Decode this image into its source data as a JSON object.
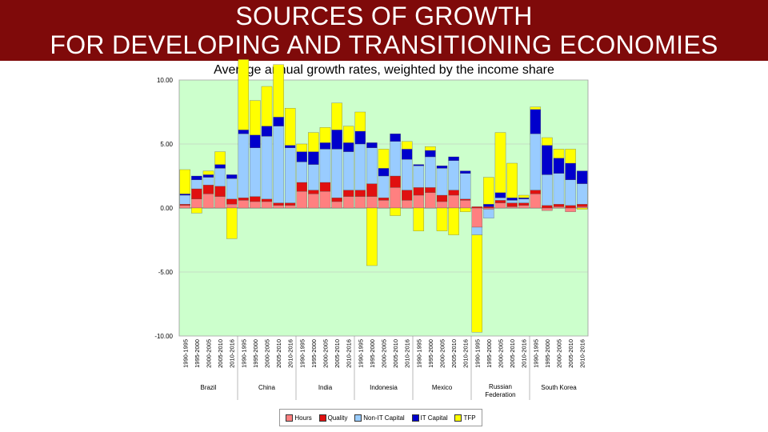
{
  "header": {
    "title_line1": "SOURCES OF GROWTH",
    "title_line2": "FOR DEVELOPING AND TRANSITIONING ECONOMIES",
    "subtitle": "Average annual growth rates, weighted by the income share"
  },
  "colors": {
    "banner": "#7f0a0a",
    "plot_bg": "#ccffcc",
    "Hours": "#ff8080",
    "Quality": "#e01010",
    "Non-IT Capital": "#99ccff",
    "IT Capital": "#0000cc",
    "TFP": "#ffff00"
  },
  "chart_data": {
    "type": "bar",
    "stacked": true,
    "ylim": [
      -10,
      10
    ],
    "yticks": [
      "10.00",
      "5.00",
      "0.00",
      "-5.00",
      "-10.00"
    ],
    "ytick_values": [
      10,
      5,
      0,
      -5,
      -10
    ],
    "grid": true,
    "legend_position": "bottom",
    "periods": [
      "1990-1995",
      "1995-2000",
      "2000-2005",
      "2005-2010",
      "2010-2016"
    ],
    "series_names": [
      "Hours",
      "Quality",
      "Non-IT Capital",
      "IT Capital",
      "TFP"
    ],
    "countries": [
      {
        "name": "Brazil",
        "bars": [
          {
            "period": "1990-1995",
            "Hours": 0.2,
            "Quality": 0.1,
            "Non-IT Capital": 0.7,
            "IT Capital": 0.1,
            "TFP": 1.9
          },
          {
            "period": "1995-2000",
            "Hours": 0.7,
            "Quality": 0.8,
            "Non-IT Capital": 0.7,
            "IT Capital": 0.3,
            "TFP": -0.4
          },
          {
            "period": "2000-2005",
            "Hours": 1.1,
            "Quality": 0.7,
            "Non-IT Capital": 0.6,
            "IT Capital": 0.2,
            "TFP": 0.3
          },
          {
            "period": "2005-2010",
            "Hours": 0.9,
            "Quality": 0.8,
            "Non-IT Capital": 1.4,
            "IT Capital": 0.3,
            "TFP": 1.0
          },
          {
            "period": "2010-2016",
            "Hours": 0.3,
            "Quality": 0.4,
            "Non-IT Capital": 1.6,
            "IT Capital": 0.3,
            "TFP": -2.4
          }
        ]
      },
      {
        "name": "China",
        "bars": [
          {
            "period": "1990-1995",
            "Hours": 0.6,
            "Quality": 0.2,
            "Non-IT Capital": 5.0,
            "IT Capital": 0.3,
            "TFP": 5.5
          },
          {
            "period": "1995-2000",
            "Hours": 0.5,
            "Quality": 0.4,
            "Non-IT Capital": 3.8,
            "IT Capital": 1.0,
            "TFP": 2.7
          },
          {
            "period": "2000-2005",
            "Hours": 0.5,
            "Quality": 0.2,
            "Non-IT Capital": 4.9,
            "IT Capital": 0.8,
            "TFP": 3.1
          },
          {
            "period": "2005-2010",
            "Hours": 0.2,
            "Quality": 0.2,
            "Non-IT Capital": 6.0,
            "IT Capital": 0.7,
            "TFP": 4.1
          },
          {
            "period": "2010-2016",
            "Hours": 0.2,
            "Quality": 0.2,
            "Non-IT Capital": 4.3,
            "IT Capital": 0.2,
            "TFP": 2.9
          }
        ]
      },
      {
        "name": "India",
        "bars": [
          {
            "period": "1990-1995",
            "Hours": 1.3,
            "Quality": 0.7,
            "Non-IT Capital": 1.6,
            "IT Capital": 0.8,
            "TFP": 0.6
          },
          {
            "period": "1995-2000",
            "Hours": 1.1,
            "Quality": 0.3,
            "Non-IT Capital": 2.0,
            "IT Capital": 1.0,
            "TFP": 1.5
          },
          {
            "period": "2000-2005",
            "Hours": 1.3,
            "Quality": 0.7,
            "Non-IT Capital": 2.6,
            "IT Capital": 0.5,
            "TFP": 1.2
          },
          {
            "period": "2005-2010",
            "Hours": 0.5,
            "Quality": 0.3,
            "Non-IT Capital": 3.8,
            "IT Capital": 1.5,
            "TFP": 2.1
          },
          {
            "period": "2010-2016",
            "Hours": 0.9,
            "Quality": 0.5,
            "Non-IT Capital": 3.0,
            "IT Capital": 0.7,
            "TFP": 1.3
          }
        ]
      },
      {
        "name": "Indonesia",
        "bars": [
          {
            "period": "1990-1995",
            "Hours": 0.9,
            "Quality": 0.5,
            "Non-IT Capital": 3.6,
            "IT Capital": 1.0,
            "TFP": 1.5
          },
          {
            "period": "1995-2000",
            "Hours": 0.9,
            "Quality": 1.0,
            "Non-IT Capital": 2.8,
            "IT Capital": 0.4,
            "TFP": -4.5
          },
          {
            "period": "2000-2005",
            "Hours": 0.6,
            "Quality": 0.2,
            "Non-IT Capital": 1.7,
            "IT Capital": 0.6,
            "TFP": 1.5
          },
          {
            "period": "2005-2010",
            "Hours": 1.6,
            "Quality": 0.9,
            "Non-IT Capital": 2.7,
            "IT Capital": 0.6,
            "TFP": -0.6
          },
          {
            "period": "2010-2016",
            "Hours": 0.6,
            "Quality": 0.8,
            "Non-IT Capital": 2.4,
            "IT Capital": 0.8,
            "TFP": 0.6
          }
        ]
      },
      {
        "name": "Mexico",
        "bars": [
          {
            "period": "1990-1995",
            "Hours": 1.0,
            "Quality": 0.6,
            "Non-IT Capital": 1.7,
            "IT Capital": 0.1,
            "TFP": -1.8
          },
          {
            "period": "1995-2000",
            "Hours": 1.2,
            "Quality": 0.4,
            "Non-IT Capital": 2.4,
            "IT Capital": 0.5,
            "TFP": 0.3
          },
          {
            "period": "2000-2005",
            "Hours": 0.5,
            "Quality": 0.5,
            "Non-IT Capital": 2.1,
            "IT Capital": 0.2,
            "TFP": -1.8
          },
          {
            "period": "2005-2010",
            "Hours": 1.0,
            "Quality": 0.4,
            "Non-IT Capital": 2.3,
            "IT Capital": 0.3,
            "TFP": -2.1
          },
          {
            "period": "2010-2016",
            "Hours": 0.6,
            "Quality": 0.1,
            "Non-IT Capital": 2.0,
            "IT Capital": 0.2,
            "TFP": -0.3
          }
        ]
      },
      {
        "name": "Russian Federation",
        "bars": [
          {
            "period": "1990-1995",
            "Hours": -1.5,
            "Quality": 0.1,
            "Non-IT Capital": -0.6,
            "IT Capital": 0.0,
            "TFP": -7.6
          },
          {
            "period": "1995-2000",
            "Hours": -0.1,
            "Quality": 0.1,
            "Non-IT Capital": -0.7,
            "IT Capital": 0.2,
            "TFP": 2.1
          },
          {
            "period": "2000-2005",
            "Hours": 0.4,
            "Quality": 0.2,
            "Non-IT Capital": 0.2,
            "IT Capital": 0.4,
            "TFP": 4.7
          },
          {
            "period": "2005-2010",
            "Hours": 0.1,
            "Quality": 0.3,
            "Non-IT Capital": 0.2,
            "IT Capital": 0.2,
            "TFP": 2.7
          },
          {
            "period": "2010-2016",
            "Hours": 0.2,
            "Quality": 0.2,
            "Non-IT Capital": 0.3,
            "IT Capital": 0.1,
            "TFP": 0.2
          }
        ]
      },
      {
        "name": "South Korea",
        "bars": [
          {
            "period": "1990-1995",
            "Hours": 1.1,
            "Quality": 0.3,
            "Non-IT Capital": 4.4,
            "IT Capital": 1.9,
            "TFP": 0.2
          },
          {
            "period": "1995-2000",
            "Hours": -0.2,
            "Quality": 0.2,
            "Non-IT Capital": 2.4,
            "IT Capital": 2.3,
            "TFP": 0.6
          },
          {
            "period": "2000-2005",
            "Hours": 0.1,
            "Quality": 0.2,
            "Non-IT Capital": 2.4,
            "IT Capital": 1.2,
            "TFP": 0.7
          },
          {
            "period": "2005-2010",
            "Hours": -0.3,
            "Quality": 0.2,
            "Non-IT Capital": 2.0,
            "IT Capital": 1.3,
            "TFP": 1.1
          },
          {
            "period": "2010-2016",
            "Hours": 0.1,
            "Quality": 0.2,
            "Non-IT Capital": 1.6,
            "IT Capital": 1.0,
            "TFP": -0.1
          }
        ]
      }
    ]
  }
}
